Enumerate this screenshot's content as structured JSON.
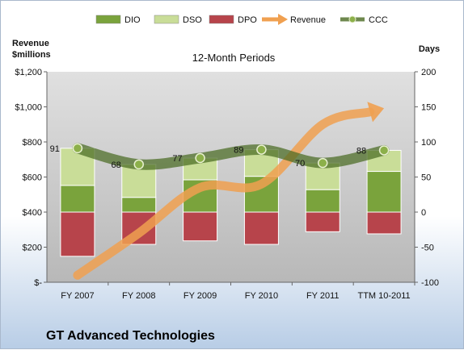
{
  "chart_data": {
    "type": "bar",
    "title": "12-Month Periods",
    "categories": [
      "FY 2007",
      "FY 2008",
      "FY 2009",
      "FY 2010",
      "FY 2011",
      "TTM 10-2011"
    ],
    "stacked_bars": [
      {
        "name": "DIO",
        "values": [
          38,
          21,
          46,
          51,
          32,
          58
        ],
        "color": "#7aa33c"
      },
      {
        "name": "DSO",
        "values": [
          53,
          47,
          31,
          38,
          38,
          30
        ],
        "color": "#c9dd98"
      },
      {
        "name": "DPO",
        "values": [
          -63,
          -46,
          -41,
          -46,
          -28,
          -31
        ],
        "color": "#b7444b"
      }
    ],
    "line_series": [
      {
        "name": "CCC",
        "values": [
          91,
          68,
          77,
          89,
          70,
          88
        ],
        "color": "#5a7a2a"
      }
    ],
    "revenue_series": {
      "name": "Revenue",
      "values": [
        -90,
        -30,
        35,
        40,
        125,
        148
      ],
      "color": "#f0a050"
    },
    "data_labels": [
      "91",
      "68",
      "77",
      "89",
      "70",
      "88"
    ],
    "left_axis": {
      "label_line1": "Revenue",
      "label_line2": "$millions",
      "range": [
        0,
        1200
      ],
      "ticks": [
        "$-",
        "$200",
        "$400",
        "$600",
        "$800",
        "$1,000",
        "$1,200"
      ]
    },
    "right_axis": {
      "label": "Days",
      "range": [
        -100,
        200
      ],
      "ticks": [
        "-100",
        "-50",
        "0",
        "50",
        "100",
        "150",
        "200"
      ]
    },
    "legend": [
      {
        "name": "DIO",
        "kind": "bar",
        "color": "#7aa33c"
      },
      {
        "name": "DSO",
        "kind": "bar",
        "color": "#c9dd98"
      },
      {
        "name": "DPO",
        "kind": "bar",
        "color": "#b7444b"
      },
      {
        "name": "Revenue",
        "kind": "arrow",
        "color": "#f0a050"
      },
      {
        "name": "CCC",
        "kind": "line",
        "color": "#5a7a2a"
      }
    ],
    "legend_position": "top",
    "grid": false,
    "plot_background": "#c8c8c8"
  },
  "company_name": "GT Advanced Technologies"
}
